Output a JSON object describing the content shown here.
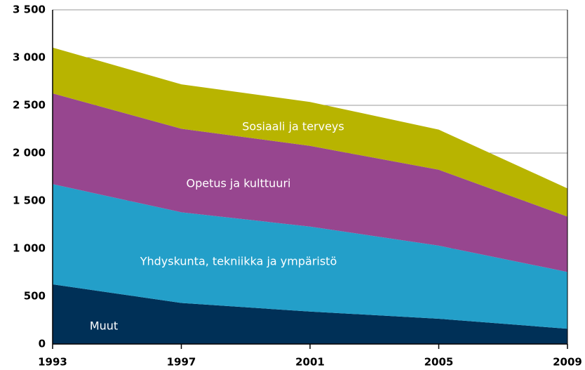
{
  "chart_data": {
    "type": "stacked_area",
    "x": [
      1993,
      1997,
      2001,
      2005,
      2009
    ],
    "series": [
      {
        "name": "Muut",
        "color": "#003057",
        "values": [
          625,
          430,
          340,
          265,
          160
        ]
      },
      {
        "name": "Yhdyskunta, tekniikka ja ympäristö",
        "color": "#239fc9",
        "values": [
          1050,
          950,
          890,
          765,
          595
        ]
      },
      {
        "name": "Opetus ja kulttuuri",
        "color": "#97468f",
        "values": [
          950,
          875,
          845,
          795,
          580
        ]
      },
      {
        "name": "Sosiaali ja terveys",
        "color": "#b8b400",
        "values": [
          480,
          465,
          460,
          420,
          295
        ]
      }
    ],
    "xlim": [
      1993,
      2009
    ],
    "xticks": [
      1993,
      1997,
      2001,
      2005,
      2009
    ],
    "ylim": [
      0,
      3500
    ],
    "yticks": [
      0,
      500,
      {
        "value": 1000,
        "label": "1 000"
      },
      {
        "value": 1500,
        "label": "1 500"
      },
      {
        "value": 2000,
        "label": "2 000"
      },
      {
        "value": 2500,
        "label": "2 500"
      },
      {
        "value": 3000,
        "label": "3 000"
      },
      {
        "value": 3500,
        "label": "3 500"
      }
    ],
    "grid": true
  }
}
